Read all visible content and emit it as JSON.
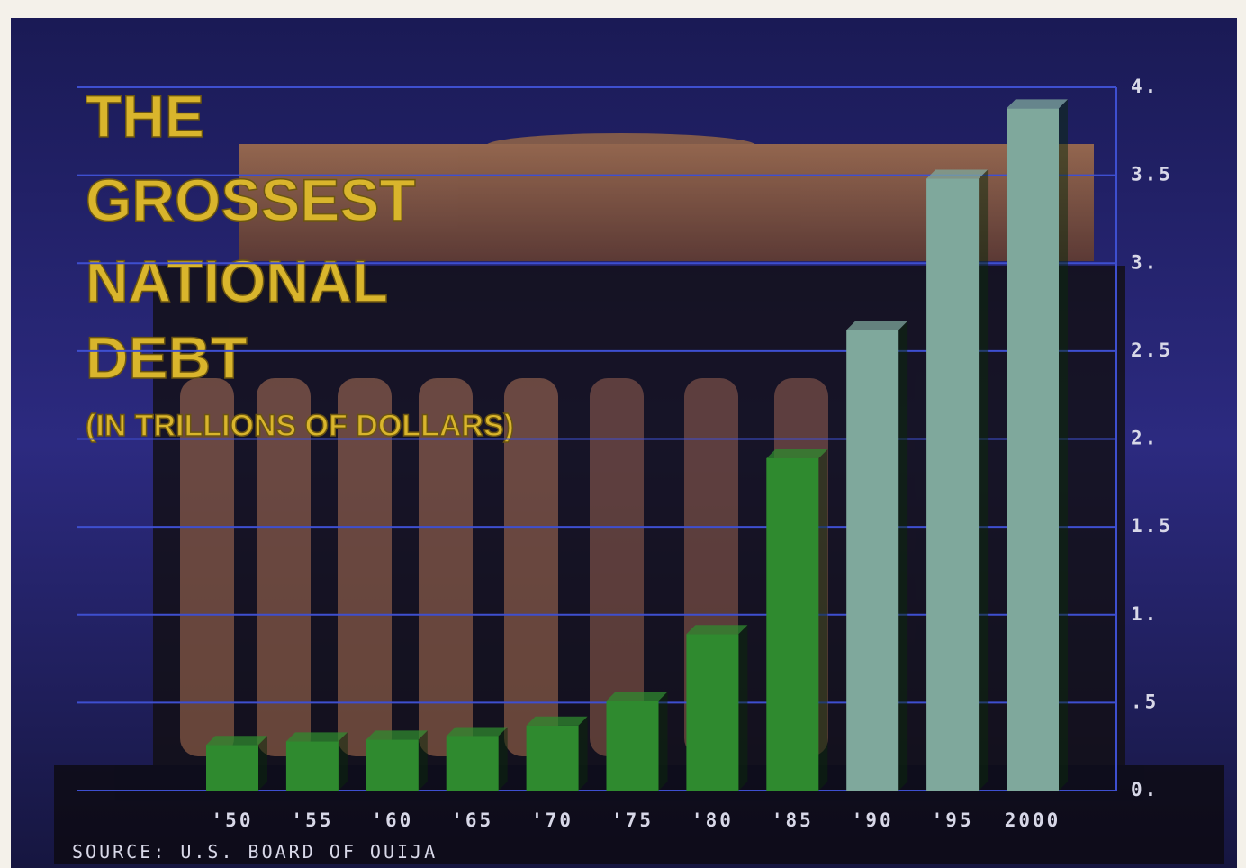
{
  "chart_data": {
    "type": "bar",
    "title": [
      "THE",
      "GROSSEST",
      "NATIONAL",
      "DEBT"
    ],
    "subtitle": "(IN TRILLIONS OF DOLLARS)",
    "source": "SOURCE: U.S. BOARD OF OUIJA",
    "categories": [
      "'50",
      "'55",
      "'60",
      "'65",
      "'70",
      "'75",
      "'80",
      "'85",
      "'90",
      "'95",
      "2000"
    ],
    "values": [
      0.26,
      0.28,
      0.29,
      0.31,
      0.37,
      0.51,
      0.89,
      1.89,
      2.62,
      3.48,
      3.88
    ],
    "colors": [
      "#2f8a2f",
      "#2f8a2f",
      "#2f8a2f",
      "#2f8a2f",
      "#2f8a2f",
      "#2f8a2f",
      "#2f8a2f",
      "#2f8a2f",
      "#7fa89c",
      "#7fa89c",
      "#7fa89c"
    ],
    "ylim": [
      0,
      4
    ],
    "yticks": [
      {
        "value": 0,
        "label": "0."
      },
      {
        "value": 0.5,
        "label": ".5"
      },
      {
        "value": 1,
        "label": "1."
      },
      {
        "value": 1.5,
        "label": "1.5"
      },
      {
        "value": 2,
        "label": "2."
      },
      {
        "value": 2.5,
        "label": "2.5"
      },
      {
        "value": 3,
        "label": "3."
      },
      {
        "value": 3.5,
        "label": "3.5"
      },
      {
        "value": 4,
        "label": "4."
      }
    ],
    "grid": true,
    "grid_color": "#3e4fd0"
  }
}
